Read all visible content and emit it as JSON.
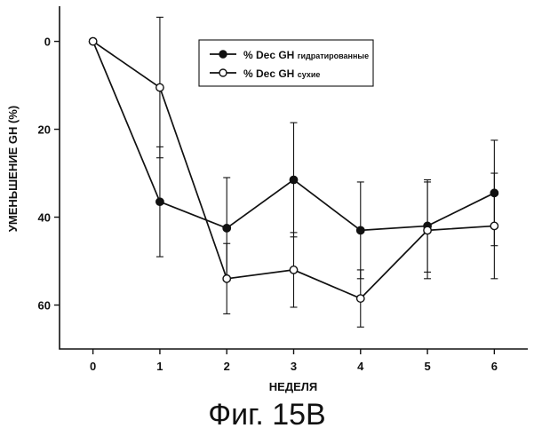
{
  "chart_data": {
    "type": "line",
    "xlabel": "НЕДЕЛЯ",
    "ylabel": "УМЕНЬШЕНИЕ GH (%)",
    "x": [
      0,
      1,
      2,
      3,
      4,
      5,
      6
    ],
    "xlim": [
      -0.5,
      6.5
    ],
    "ylim": [
      -8,
      70
    ],
    "y_inverted": true,
    "xticks": [
      0,
      1,
      2,
      3,
      4,
      5,
      6
    ],
    "yticks": [
      0,
      20,
      40,
      60
    ],
    "grid": false,
    "legend_position": "top-center",
    "series": [
      {
        "name": "% Dec GH гидратированные",
        "marker": "filled-circle",
        "values": [
          0,
          36.5,
          42.5,
          31.5,
          43,
          42,
          34.5
        ],
        "err_low": [
          0,
          12.5,
          11.5,
          13,
          11,
          10.5,
          12
        ],
        "err_high": [
          0,
          12.5,
          11.5,
          13,
          11,
          10.5,
          12
        ]
      },
      {
        "name": "% Dec GH сухие",
        "marker": "open-circle",
        "values": [
          0,
          10.5,
          54,
          52,
          58.5,
          43,
          42
        ],
        "err_low": [
          0,
          16,
          8,
          8.5,
          6.5,
          11,
          12
        ],
        "err_high": [
          0,
          16,
          8,
          8.5,
          6.5,
          11,
          12
        ]
      }
    ]
  },
  "legend": {
    "hydrated_main": "% Dec GH",
    "hydrated_suffix": "гидратированные",
    "dry_main": "% Dec GH",
    "dry_suffix": "сухие"
  },
  "caption": "Фиг. 15B"
}
